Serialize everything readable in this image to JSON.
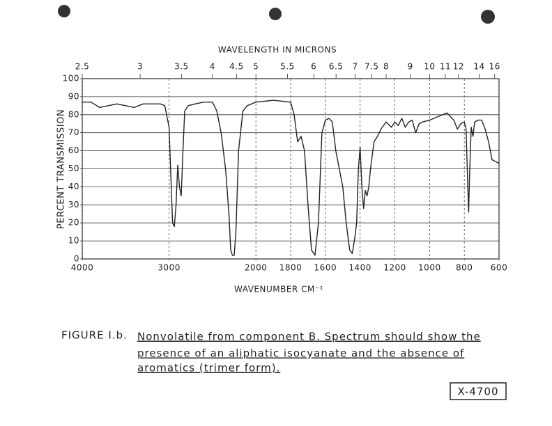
{
  "chart_data": {
    "type": "line",
    "x2label": "WAVELENGTH IN MICRONS",
    "ylabel": "PERCENT TRANSMISSION",
    "xlabel": "WAVENUMBER CM⁻¹",
    "xlim": [
      4000,
      600
    ],
    "xscale_break": 2000,
    "xticks": [
      4000,
      3000,
      2000,
      1800,
      1600,
      1400,
      1200,
      1000,
      800,
      600
    ],
    "x2ticks": [
      2.5,
      3,
      3.5,
      4,
      4.5,
      5,
      5.5,
      6,
      6.5,
      7,
      7.5,
      8,
      9,
      10,
      11,
      12,
      14,
      16
    ],
    "ylim": [
      0,
      100
    ],
    "yticks": [
      0,
      10,
      20,
      30,
      40,
      50,
      60,
      70,
      80,
      90,
      100
    ],
    "grid": true,
    "color": "#222222",
    "x": [
      4000,
      3900,
      3800,
      3700,
      3600,
      3500,
      3400,
      3300,
      3200,
      3100,
      3050,
      3000,
      2960,
      2940,
      2920,
      2900,
      2880,
      2860,
      2840,
      2820,
      2780,
      2700,
      2600,
      2500,
      2450,
      2400,
      2350,
      2310,
      2290,
      2270,
      2250,
      2230,
      2200,
      2150,
      2100,
      2050,
      2000,
      1900,
      1800,
      1780,
      1760,
      1740,
      1720,
      1700,
      1680,
      1660,
      1640,
      1620,
      1600,
      1580,
      1560,
      1540,
      1520,
      1500,
      1480,
      1460,
      1445,
      1430,
      1420,
      1410,
      1400,
      1390,
      1380,
      1370,
      1360,
      1350,
      1340,
      1320,
      1300,
      1280,
      1250,
      1220,
      1200,
      1180,
      1160,
      1140,
      1120,
      1100,
      1080,
      1060,
      1040,
      1000,
      950,
      900,
      860,
      840,
      820,
      800,
      790,
      780,
      775,
      770,
      760,
      750,
      740,
      720,
      700,
      680,
      660,
      640,
      620,
      600
    ],
    "values": [
      87,
      87,
      84,
      85,
      86,
      85,
      84,
      86,
      86,
      86,
      85,
      73,
      20,
      18,
      30,
      52,
      40,
      35,
      60,
      82,
      85,
      86,
      87,
      87,
      82,
      70,
      50,
      25,
      5,
      2,
      2,
      15,
      60,
      82,
      85,
      86,
      87,
      88,
      87,
      80,
      65,
      68,
      60,
      30,
      5,
      2,
      20,
      70,
      77,
      78,
      76,
      60,
      50,
      40,
      20,
      5,
      3,
      12,
      20,
      50,
      62,
      40,
      28,
      38,
      35,
      40,
      50,
      65,
      68,
      72,
      76,
      73,
      76,
      74,
      78,
      73,
      76,
      77,
      70,
      75,
      76,
      77,
      79,
      81,
      77,
      72,
      75,
      76,
      72,
      40,
      26,
      45,
      73,
      68,
      76,
      77,
      77,
      72,
      65,
      55,
      54,
      53
    ]
  },
  "caption": {
    "label": "FIGURE I.b.",
    "lines": [
      "Nonvolatile from component B. Spectrum should show the",
      "presence of an aliphatic isocyanate and the absence of",
      "aromatics (trimer form)."
    ]
  },
  "stamp": "X-4700"
}
